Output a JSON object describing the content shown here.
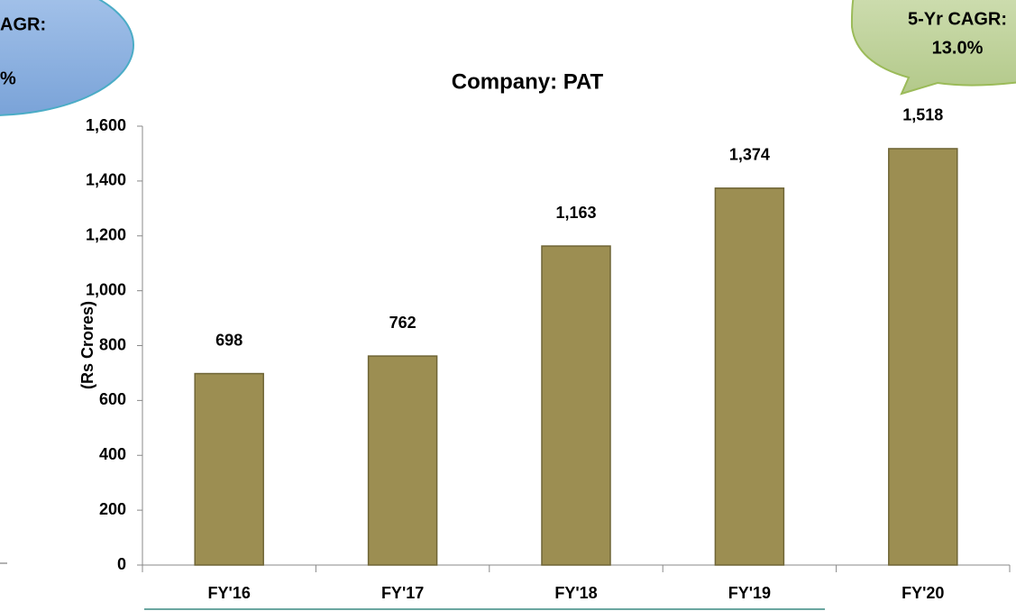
{
  "chart_data": {
    "type": "bar",
    "title": "Company: PAT",
    "y_label": "(Rs Crores)",
    "categories": [
      "FY'16",
      "FY'17",
      "FY'18",
      "FY'19",
      "FY'20"
    ],
    "values": [
      698,
      762,
      1163,
      1374,
      1518
    ],
    "value_labels": [
      "698",
      "762",
      "1,163",
      "1,374",
      "1,518"
    ],
    "color": "#9c8e52",
    "ylim": [
      0,
      1600
    ],
    "yticks": [
      0,
      200,
      400,
      600,
      800,
      {
        "value": 1000,
        "label": "1,000"
      },
      {
        "value": 1200,
        "label": "1,200"
      },
      {
        "value": 1400,
        "label": "1,400"
      },
      {
        "value": 1600,
        "label": "1,600"
      }
    ],
    "annotations": [
      [
        "AGR:",
        "%"
      ],
      [
        "5-Yr CAGR:",
        "13.0%"
      ]
    ]
  }
}
